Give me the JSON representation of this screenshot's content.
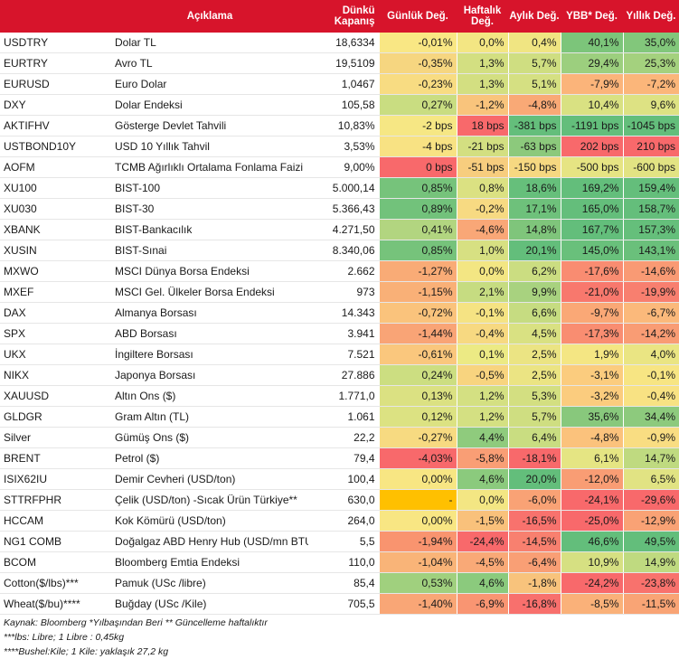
{
  "headers": [
    "",
    "Açıklama",
    "Dünkü Kapanış",
    "Günlük Değ.",
    "Haftalık Değ.",
    "Aylık Değ.",
    "YBB* Değ.",
    "Yıllık Değ."
  ],
  "rows": [
    {
      "code": "USDTRY",
      "desc": "Dolar TL",
      "close": "18,6334",
      "vals": [
        "-0,01%",
        "0,0%",
        "0,4%",
        "40,1%",
        "35,0%"
      ],
      "colors": [
        "#f9e784",
        "#f3e683",
        "#f0e582",
        "#7cc57a",
        "#82c77b"
      ]
    },
    {
      "code": "EURTRY",
      "desc": "Avro TL",
      "close": "19,5109",
      "vals": [
        "-0,35%",
        "1,3%",
        "5,7%",
        "29,4%",
        "25,3%"
      ],
      "colors": [
        "#f6d680",
        "#d3df81",
        "#cfde81",
        "#9ccf7e",
        "#a4d17e"
      ]
    },
    {
      "code": "EURUSD",
      "desc": "Euro Dolar",
      "close": "1,0467",
      "vals": [
        "-0,23%",
        "1,3%",
        "5,1%",
        "-7,9%",
        "-7,2%"
      ],
      "colors": [
        "#f8dc82",
        "#d3df81",
        "#d5e082",
        "#fbb47a",
        "#fbb67a"
      ]
    },
    {
      "code": "DXY",
      "desc": "Dolar Endeksi",
      "close": "105,58",
      "vals": [
        "0,27%",
        "-1,2%",
        "-4,8%",
        "10,4%",
        "9,6%"
      ],
      "colors": [
        "#c9dd81",
        "#f9c47c",
        "#f9a976",
        "#d9e182",
        "#dde283"
      ]
    },
    {
      "code": "AKTIFHV",
      "desc": "Gösterge Devlet Tahvili",
      "close": "10,83%",
      "vals": [
        "-2 bps",
        "18 bps",
        "-381 bps",
        "-1191 bps",
        "-1045 bps"
      ],
      "colors": [
        "#f6e784",
        "#f8696b",
        "#64be7b",
        "#63be7b",
        "#63be7b"
      ]
    },
    {
      "code": "USTBOND10Y",
      "desc": "USD 10 Yıllık Tahvil",
      "close": "3,53%",
      "vals": [
        "-4 bps",
        "-21 bps",
        "-63 bps",
        "202 bps",
        "210 bps"
      ],
      "colors": [
        "#f8e283",
        "#d3df81",
        "#8cc97c",
        "#f8696b",
        "#f8696b"
      ]
    },
    {
      "code": "AOFM",
      "desc": "TCMB Ağırlıklı Ortalama Fonlama Faizi",
      "close": "9,00%",
      "vals": [
        "0 bps",
        "-51 bps",
        "-150 bps",
        "-500 bps",
        "-600 bps"
      ],
      "colors": [
        "#f8696b",
        "#f7cd7e",
        "#f6d881",
        "#e6e483",
        "#e2e383"
      ]
    },
    {
      "code": "XU100",
      "desc": "BIST-100",
      "close": "5.000,14",
      "vals": [
        "0,85%",
        "0,8%",
        "18,6%",
        "169,2%",
        "159,4%"
      ],
      "colors": [
        "#76c37b",
        "#dbe182",
        "#66bf7b",
        "#63be7b",
        "#64be7b"
      ]
    },
    {
      "code": "XU030",
      "desc": "BIST-30",
      "close": "5.366,43",
      "vals": [
        "0,89%",
        "-0,2%",
        "17,1%",
        "165,0%",
        "158,7%"
      ],
      "colors": [
        "#72c27b",
        "#f7da82",
        "#6ec17b",
        "#64be7b",
        "#64be7b"
      ]
    },
    {
      "code": "XBANK",
      "desc": "BIST-Bankacılık",
      "close": "4.271,50",
      "vals": [
        "0,41%",
        "-4,6%",
        "14,8%",
        "167,7%",
        "157,3%"
      ],
      "colors": [
        "#b2d580",
        "#f9a777",
        "#7fc57b",
        "#63be7b",
        "#65bf7b"
      ]
    },
    {
      "code": "XUSIN",
      "desc": "BIST-Sınai",
      "close": "8.340,06",
      "vals": [
        "0,85%",
        "1,0%",
        "20,1%",
        "145,0%",
        "143,1%"
      ],
      "colors": [
        "#76c37b",
        "#d7e082",
        "#63be7b",
        "#69c07b",
        "#6ac07b"
      ]
    },
    {
      "code": "MXWO",
      "desc": "MSCI Dünya Borsa Endeksi",
      "close": "2.662",
      "vals": [
        "-1,27%",
        "0,0%",
        "6,2%",
        "-17,6%",
        "-14,6%"
      ],
      "colors": [
        "#f9ab76",
        "#f3e683",
        "#cbdd81",
        "#f98c71",
        "#f99a74"
      ]
    },
    {
      "code": "MXEF",
      "desc": "MSCI Gel. Ülkeler Borsa Endeksi",
      "close": "973",
      "vals": [
        "-1,15%",
        "2,1%",
        "9,9%",
        "-21,0%",
        "-19,9%"
      ],
      "colors": [
        "#f9b077",
        "#c6dc81",
        "#a8d27f",
        "#f8786d",
        "#f87f6f"
      ]
    },
    {
      "code": "DAX",
      "desc": "Almanya Borsası",
      "close": "14.343",
      "vals": [
        "-0,72%",
        "-0,1%",
        "6,6%",
        "-9,7%",
        "-6,7%"
      ],
      "colors": [
        "#fac37c",
        "#f5e383",
        "#c6dc81",
        "#faa876",
        "#fbb97b"
      ]
    },
    {
      "code": "SPX",
      "desc": "ABD Borsası",
      "close": "3.941",
      "vals": [
        "-1,44%",
        "-0,4%",
        "4,5%",
        "-17,3%",
        "-14,2%"
      ],
      "colors": [
        "#f9a476",
        "#f7d981",
        "#d9e182",
        "#f98d71",
        "#f99c74"
      ]
    },
    {
      "code": "UKX",
      "desc": "İngiltere Borsası",
      "close": "7.521",
      "vals": [
        "-0,61%",
        "0,1%",
        "2,5%",
        "1,9%",
        "4,0%"
      ],
      "colors": [
        "#fac77d",
        "#ecea84",
        "#ebe483",
        "#f4e683",
        "#eae583"
      ]
    },
    {
      "code": "NIKX",
      "desc": "Japonya Borsası",
      "close": "27.886",
      "vals": [
        "0,24%",
        "-0,5%",
        "2,5%",
        "-3,1%",
        "-0,1%"
      ],
      "colors": [
        "#ccde81",
        "#f8d47f",
        "#ebe483",
        "#fbcc7e",
        "#f7e583"
      ]
    },
    {
      "code": "XAUUSD",
      "desc": "Altın Ons ($)",
      "close": "1.771,0",
      "vals": [
        "0,13%",
        "1,2%",
        "5,3%",
        "-3,2%",
        "-0,4%"
      ],
      "colors": [
        "#dbe182",
        "#d4e082",
        "#d3df81",
        "#fbcc7e",
        "#f8e283"
      ]
    },
    {
      "code": "GLDGR",
      "desc": "Gram Altın (TL)",
      "close": "1.061",
      "vals": [
        "0,12%",
        "1,2%",
        "5,7%",
        "35,6%",
        "34,4%"
      ],
      "colors": [
        "#dce282",
        "#d4e082",
        "#cfde81",
        "#88c87c",
        "#8dca7d"
      ]
    },
    {
      "code": "Silver",
      "desc": "Gümüş Ons ($)",
      "close": "22,2",
      "vals": [
        "-0,27%",
        "4,4%",
        "6,4%",
        "-4,8%",
        "-0,9%"
      ],
      "colors": [
        "#f7da81",
        "#8fcb7d",
        "#c9dd81",
        "#fbc27c",
        "#f9dd82"
      ]
    },
    {
      "code": "BRENT",
      "desc": "Petrol ($)",
      "close": "79,4",
      "vals": [
        "-4,03%",
        "-5,8%",
        "-18,1%",
        "6,1%",
        "14,7%"
      ],
      "colors": [
        "#f8696b",
        "#f99e75",
        "#f8696b",
        "#e5e583",
        "#bfda80"
      ]
    },
    {
      "code": "ISIX62IU",
      "desc": "Demir Cevheri (USD/ton)",
      "close": "100,4",
      "vals": [
        "0,00%",
        "4,6%",
        "20,0%",
        "-12,0%",
        "6,5%"
      ],
      "colors": [
        "#f8e683",
        "#8bca7d",
        "#63be7b",
        "#f99d74",
        "#e1e383"
      ]
    },
    {
      "code": "STTRFPHR",
      "desc": "Çelik (USD/ton) -Sıcak Ürün Türkiye**",
      "close": "630,0",
      "vals": [
        "-",
        "0,0%",
        "-6,0%",
        "-24,1%",
        "-29,6%"
      ],
      "colors": [
        "#ffc000",
        "#f3e683",
        "#f9a275",
        "#f8696b",
        "#f8696b"
      ]
    },
    {
      "code": "HCCAM",
      "desc": "Kok Kömürü (USD/ton)",
      "close": "264,0",
      "vals": [
        "0,00%",
        "-1,5%",
        "-16,5%",
        "-25,0%",
        "-12,9%"
      ],
      "colors": [
        "#f8e683",
        "#f9c17b",
        "#f8726d",
        "#f8696b",
        "#f9a275"
      ]
    },
    {
      "code": "NG1 COMB",
      "desc": "Doğalgaz ABD Henry Hub (USD/mn BTU)",
      "close": "5,5",
      "vals": [
        "-1,94%",
        "-24,4%",
        "-14,5%",
        "46,6%",
        "49,5%"
      ],
      "colors": [
        "#f9946f",
        "#f8696b",
        "#f8806f",
        "#63be7b",
        "#63be7b"
      ]
    },
    {
      "code": "BCOM",
      "desc": "Bloomberg Emtia Endeksi",
      "close": "110,0",
      "vals": [
        "-1,04%",
        "-4,5%",
        "-6,4%",
        "10,9%",
        "14,9%"
      ],
      "colors": [
        "#f9b478",
        "#f9a977",
        "#f99f75",
        "#d6e082",
        "#bfda80"
      ]
    },
    {
      "code": "Cotton($/lbs)***",
      "desc": "Pamuk (USc /libre)",
      "close": "85,4",
      "vals": [
        "0,53%",
        "4,6%",
        "-1,8%",
        "-24,2%",
        "-23,8%"
      ],
      "colors": [
        "#a0d07e",
        "#8bca7d",
        "#f8c37c",
        "#f8696b",
        "#f8726d"
      ]
    },
    {
      "code": "Wheat($/bu)****",
      "desc": "Buğday (USc /Kile)",
      "close": "705,5",
      "vals": [
        "-1,40%",
        "-6,9%",
        "-16,8%",
        "-8,5%",
        "-11,5%"
      ],
      "colors": [
        "#f9a676",
        "#f99572",
        "#f8706d",
        "#fab179",
        "#f9a475"
      ]
    }
  ],
  "footnotes": [
    "Kaynak: Bloomberg *Yılbaşından Beri  ** Güncelleme haftalıktır",
    "***lbs: Libre; 1 Libre : 0,45kg",
    "****Bushel:Kile; 1 Kile: yaklaşık 27,2 kg"
  ]
}
